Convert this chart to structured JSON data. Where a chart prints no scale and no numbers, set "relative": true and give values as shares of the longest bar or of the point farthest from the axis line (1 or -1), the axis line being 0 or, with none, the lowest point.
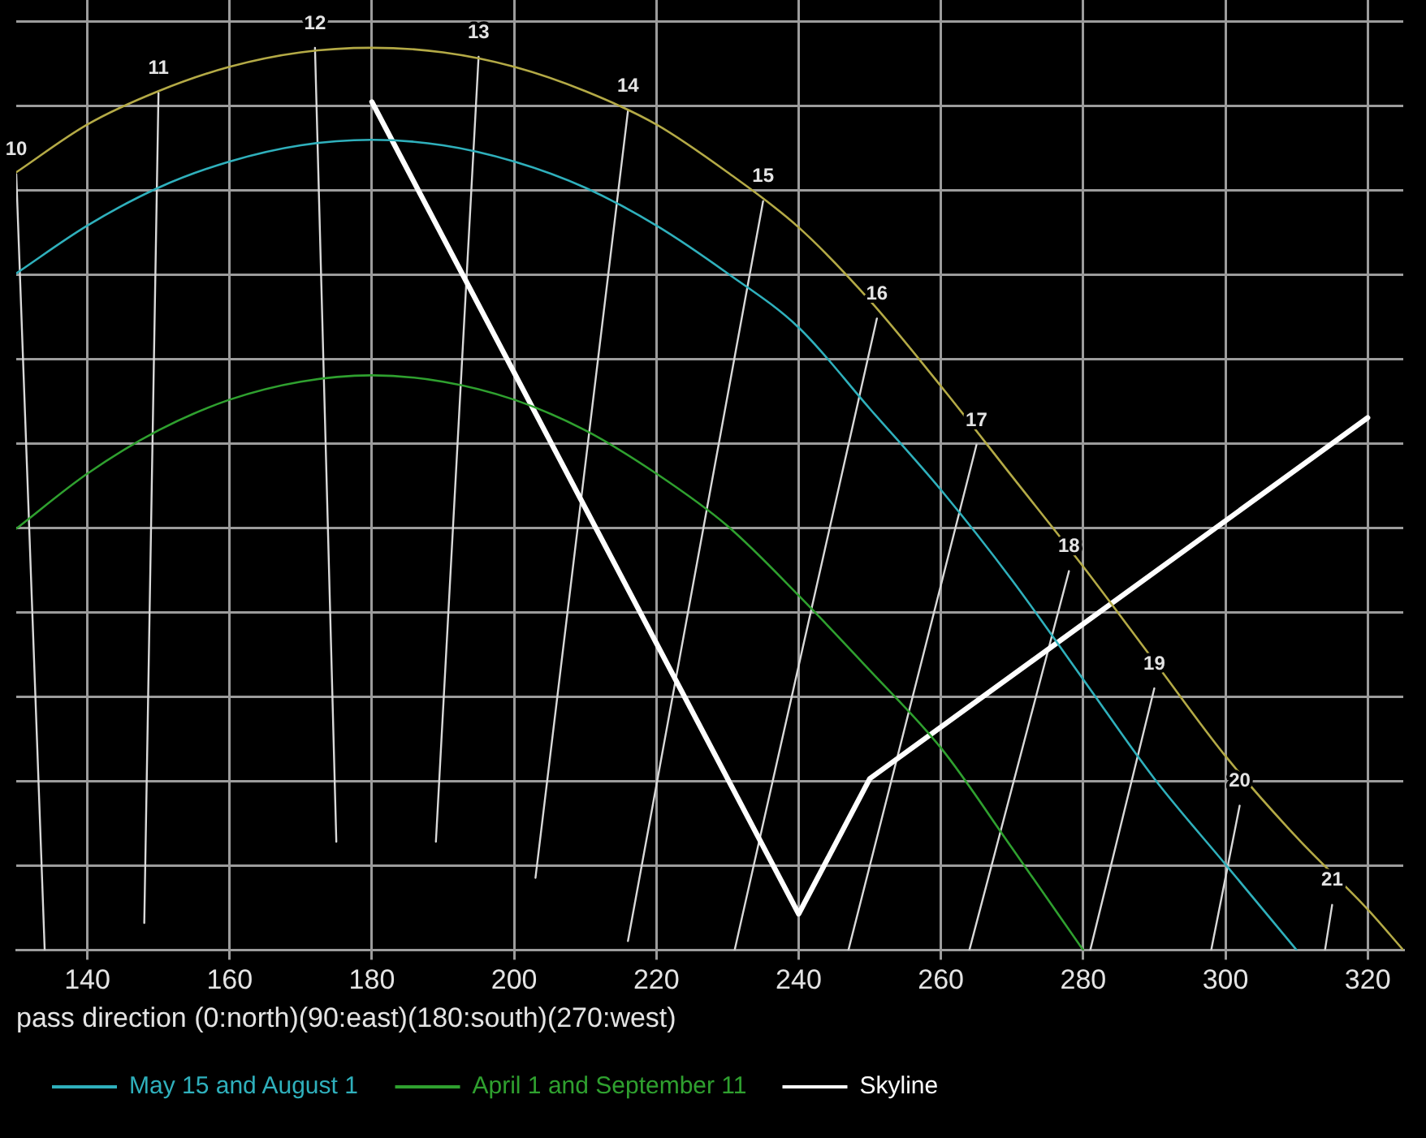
{
  "chart_data": {
    "type": "line",
    "xlabel": "pass direction (0:north)(90:east)(180:south)(270:west)",
    "relative": true,
    "xlim": [
      130,
      325
    ],
    "xticks": [
      140,
      160,
      180,
      200,
      220,
      240,
      260,
      280,
      300,
      320
    ],
    "grid": true,
    "legend": "bottom left",
    "marker": "none",
    "series": [
      {
        "color": "#b4aa46",
        "x": [
          130,
          140,
          150,
          160,
          170,
          180,
          190,
          200,
          210,
          220,
          230,
          240,
          250,
          260,
          270,
          280,
          290,
          300,
          310,
          320,
          325
        ],
        "values": [
          0.862,
          0.915,
          0.952,
          0.979,
          0.995,
          1.0,
          0.995,
          0.979,
          0.952,
          0.915,
          0.862,
          0.801,
          0.72,
          0.625,
          0.525,
          0.425,
          0.32,
          0.215,
          0.125,
          0.045,
          0
        ]
      },
      {
        "name": "May 15 and August 1",
        "color": "#2fb0bc",
        "x": [
          130,
          140,
          150,
          160,
          170,
          180,
          190,
          200,
          210,
          220,
          230,
          240,
          250,
          260,
          270,
          280,
          290,
          300,
          310
        ],
        "values": [
          0.75,
          0.803,
          0.845,
          0.874,
          0.892,
          0.898,
          0.892,
          0.874,
          0.845,
          0.803,
          0.75,
          0.69,
          0.6,
          0.51,
          0.41,
          0.3,
          0.19,
          0.095,
          0
        ]
      },
      {
        "name": "April 1 and September 11",
        "color": "#2fa02f",
        "x": [
          130,
          140,
          150,
          160,
          170,
          180,
          190,
          200,
          210,
          220,
          230,
          240,
          250,
          260,
          270,
          280
        ],
        "values": [
          0.467,
          0.528,
          0.576,
          0.61,
          0.63,
          0.637,
          0.63,
          0.61,
          0.576,
          0.528,
          0.47,
          0.393,
          0.31,
          0.224,
          0.113,
          0
        ]
      },
      {
        "name": "Skyline",
        "color": "#ffffff",
        "x": [
          180,
          240,
          250,
          320
        ],
        "values": [
          0.94,
          0.04,
          0.19,
          0.59
        ]
      },
      {
        "color": "#d9d9d9",
        "x": [
          130,
          134
        ],
        "values": [
          0.86,
          0
        ]
      },
      {
        "color": "#d9d9d9",
        "x": [
          150,
          148
        ],
        "values": [
          0.95,
          0.03
        ]
      },
      {
        "color": "#d9d9d9",
        "x": [
          172,
          175
        ],
        "values": [
          1.0,
          0.12
        ]
      },
      {
        "color": "#d9d9d9",
        "x": [
          195,
          189
        ],
        "values": [
          0.99,
          0.12
        ]
      },
      {
        "color": "#d9d9d9",
        "x": [
          216,
          203
        ],
        "values": [
          0.93,
          0.08
        ]
      },
      {
        "color": "#d9d9d9",
        "x": [
          235,
          216
        ],
        "values": [
          0.83,
          0.01
        ]
      },
      {
        "color": "#d9d9d9",
        "x": [
          251,
          231
        ],
        "values": [
          0.7,
          0
        ]
      },
      {
        "color": "#d9d9d9",
        "x": [
          265,
          247
        ],
        "values": [
          0.56,
          0
        ]
      },
      {
        "color": "#d9d9d9",
        "x": [
          278,
          264
        ],
        "values": [
          0.42,
          0
        ]
      },
      {
        "color": "#d9d9d9",
        "x": [
          290,
          281
        ],
        "values": [
          0.29,
          0
        ]
      },
      {
        "color": "#d9d9d9",
        "x": [
          302,
          298
        ],
        "values": [
          0.16,
          0
        ]
      },
      {
        "color": "#d9d9d9",
        "x": [
          315,
          314
        ],
        "values": [
          0.05,
          0
        ]
      }
    ],
    "annotations": [
      {
        "text": "10",
        "x": 130,
        "y": 0.86
      },
      {
        "text": "11",
        "x": 150,
        "y": 0.95
      },
      {
        "text": "12",
        "x": 172,
        "y": 1.0
      },
      {
        "text": "13",
        "x": 195,
        "y": 0.99
      },
      {
        "text": "14",
        "x": 216,
        "y": 0.93
      },
      {
        "text": "15",
        "x": 235,
        "y": 0.83
      },
      {
        "text": "16",
        "x": 251,
        "y": 0.7
      },
      {
        "text": "17",
        "x": 265,
        "y": 0.56
      },
      {
        "text": "18",
        "x": 278,
        "y": 0.42
      },
      {
        "text": "19",
        "x": 290,
        "y": 0.29
      },
      {
        "text": "20",
        "x": 302,
        "y": 0.16
      },
      {
        "text": "21",
        "x": 315,
        "y": 0.05
      }
    ]
  }
}
